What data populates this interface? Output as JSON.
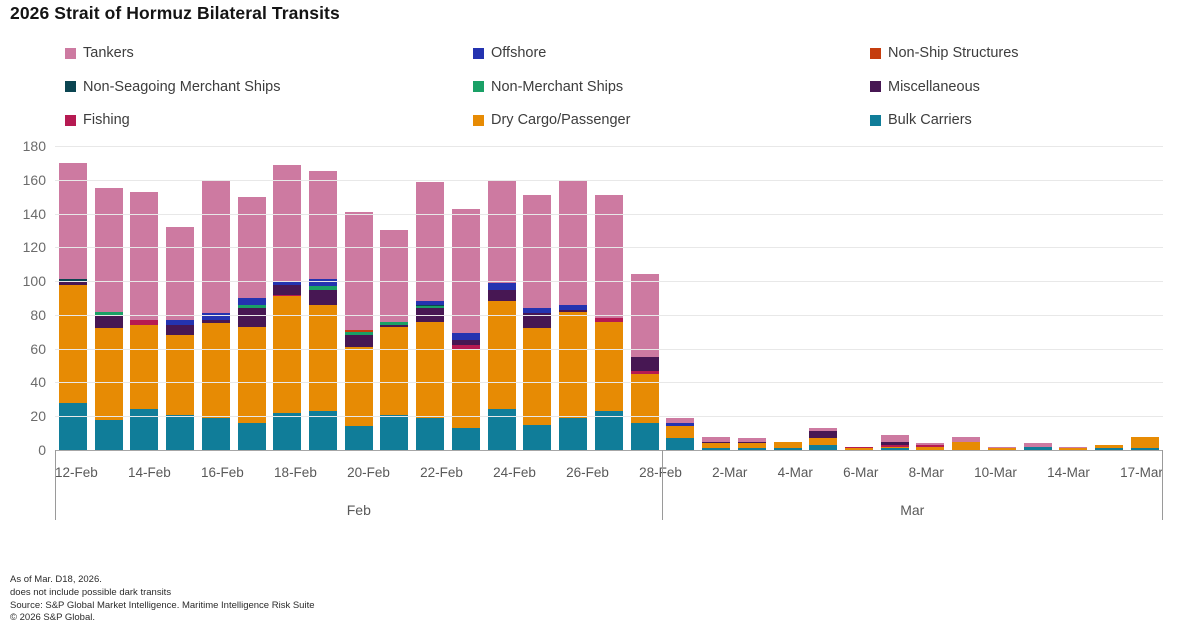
{
  "title": "2026 Strait of Hormuz Bilateral Transits",
  "colors": {
    "Tankers": "#cd7aa1",
    "Offshore": "#2433b0",
    "Non-Ship Structures": "#c53d0e",
    "Non-Seagoing Merchant Ships": "#0b4551",
    "Non-Merchant Ships": "#1aa066",
    "Miscellaneous": "#471753",
    "Fishing": "#b61a52",
    "Dry Cargo/Passenger": "#e78b04",
    "Bulk Carriers": "#107d99"
  },
  "legend": {
    "items": [
      "Tankers",
      "Offshore",
      "Non-Ship Structures",
      "Non-Seagoing Merchant Ships",
      "Non-Merchant Ships",
      "Miscellaneous",
      "Fishing",
      "Dry Cargo/Passenger",
      "Bulk Carriers"
    ]
  },
  "chart_data": {
    "type": "bar",
    "stacked": true,
    "title": "2026 Strait of Hormuz Bilateral Transits",
    "ylim": [
      0,
      180
    ],
    "yticks": [
      0,
      20,
      40,
      60,
      80,
      100,
      120,
      140,
      160,
      180
    ],
    "grid": "horizontal",
    "legend_position": "top",
    "categories": [
      "12-Feb",
      "13-Feb",
      "14-Feb",
      "15-Feb",
      "16-Feb",
      "17-Feb",
      "18-Feb",
      "19-Feb",
      "20-Feb",
      "21-Feb",
      "22-Feb",
      "23-Feb",
      "24-Feb",
      "25-Feb",
      "26-Feb",
      "27-Feb",
      "28-Feb",
      "1-Mar",
      "2-Mar",
      "3-Mar",
      "4-Mar",
      "5-Mar",
      "6-Mar",
      "7-Mar",
      "8-Mar",
      "9-Mar",
      "10-Mar",
      "12-Mar",
      "14-Mar",
      "16-Mar",
      "17-Mar"
    ],
    "tick_labels": [
      "12-Feb",
      "",
      "14-Feb",
      "",
      "16-Feb",
      "",
      "18-Feb",
      "",
      "20-Feb",
      "",
      "22-Feb",
      "",
      "24-Feb",
      "",
      "26-Feb",
      "",
      "28-Feb",
      "",
      "2-Mar",
      "",
      "4-Mar",
      "",
      "6-Mar",
      "",
      "8-Mar",
      "",
      "10-Mar",
      "",
      "14-Mar",
      "",
      "17-Mar"
    ],
    "x_groups": [
      {
        "label": "Feb",
        "span": 17
      },
      {
        "label": "Mar",
        "span": 14
      }
    ],
    "series": [
      {
        "name": "Bulk Carriers",
        "values": [
          28,
          18,
          24,
          21,
          19,
          16,
          22,
          23,
          14,
          21,
          19,
          13,
          24,
          15,
          19,
          23,
          16,
          7,
          1,
          1,
          1,
          3,
          0,
          1,
          0,
          0,
          0,
          2,
          0,
          1,
          1
        ]
      },
      {
        "name": "Dry Cargo/Passenger",
        "values": [
          70,
          54,
          50,
          47,
          56,
          57,
          69,
          63,
          47,
          52,
          57,
          47,
          64,
          57,
          63,
          53,
          29,
          7,
          3,
          3,
          4,
          4,
          1,
          1,
          2,
          5,
          1,
          0,
          1,
          2,
          7
        ]
      },
      {
        "name": "Fishing",
        "values": [
          0,
          0,
          3,
          0,
          0,
          0,
          1,
          0,
          0,
          0,
          0,
          2,
          0,
          0,
          0,
          2,
          2,
          0,
          0,
          0,
          0,
          0,
          1,
          1,
          1,
          0,
          0,
          0,
          0,
          0,
          0
        ]
      },
      {
        "name": "Miscellaneous",
        "values": [
          2,
          8,
          0,
          6,
          2,
          11,
          6,
          9,
          7,
          1,
          8,
          3,
          7,
          9,
          1,
          0,
          8,
          0,
          1,
          1,
          0,
          4,
          0,
          2,
          0,
          0,
          0,
          0,
          0,
          0,
          0
        ]
      },
      {
        "name": "Non-Merchant Ships",
        "values": [
          0,
          2,
          0,
          0,
          0,
          2,
          0,
          2,
          2,
          2,
          1,
          0,
          0,
          0,
          0,
          0,
          0,
          0,
          0,
          0,
          0,
          0,
          0,
          0,
          0,
          0,
          0,
          0,
          0,
          0,
          0
        ]
      },
      {
        "name": "Non-Seagoing Merchant Ships",
        "values": [
          1,
          0,
          0,
          0,
          0,
          0,
          0,
          0,
          0,
          0,
          1,
          0,
          0,
          0,
          0,
          0,
          0,
          0,
          0,
          0,
          0,
          0,
          0,
          0,
          0,
          0,
          0,
          0,
          0,
          0,
          0
        ]
      },
      {
        "name": "Non-Ship Structures",
        "values": [
          0,
          0,
          0,
          0,
          0,
          0,
          0,
          0,
          1,
          0,
          0,
          0,
          0,
          0,
          0,
          0,
          0,
          0,
          0,
          0,
          0,
          0,
          0,
          0,
          0,
          0,
          0,
          0,
          0,
          0,
          0
        ]
      },
      {
        "name": "Offshore",
        "values": [
          0,
          0,
          0,
          3,
          4,
          4,
          2,
          4,
          0,
          0,
          2,
          4,
          4,
          3,
          3,
          0,
          0,
          2,
          0,
          0,
          0,
          0,
          0,
          0,
          0,
          0,
          0,
          0,
          0,
          0,
          0
        ]
      },
      {
        "name": "Tankers",
        "values": [
          69,
          73,
          76,
          55,
          79,
          60,
          69,
          64,
          70,
          54,
          71,
          74,
          61,
          67,
          74,
          73,
          49,
          3,
          3,
          2,
          0,
          2,
          0,
          4,
          1,
          3,
          1,
          2,
          1,
          0,
          0
        ]
      }
    ]
  },
  "footer": {
    "lines": [
      "As of Mar. D18, 2026.",
      "does not include possible dark transits",
      "Source: S&P Global Market Intelligence. Maritime Intelligence Risk Suite",
      "© 2026 S&P Global."
    ]
  }
}
